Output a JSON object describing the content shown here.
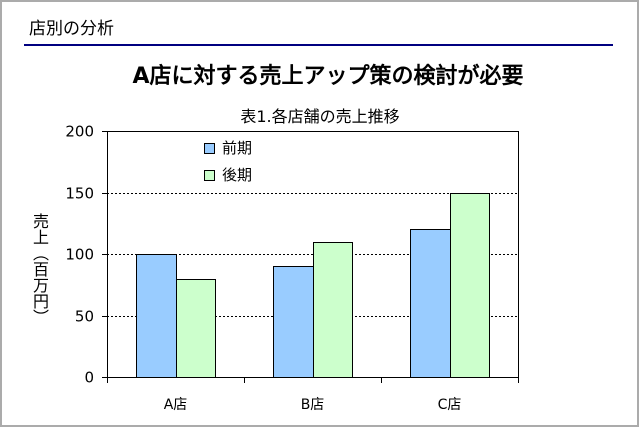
{
  "header": {
    "title": "店別の分析",
    "rule_color": "#000080"
  },
  "slide": {
    "headline": "A店に対する売上アップ策の検討が必要"
  },
  "chart_data": {
    "type": "bar",
    "title": "表1.各店舗の売上推移",
    "ylabel": "売上（百万円）",
    "categories": [
      "A店",
      "B店",
      "C店"
    ],
    "series": [
      {
        "name": "前期",
        "values": [
          100,
          90,
          120
        ],
        "color": "#99CCFF"
      },
      {
        "name": "後期",
        "values": [
          80,
          110,
          150
        ],
        "color": "#CCFFCC"
      }
    ],
    "ylim": [
      0,
      200
    ],
    "yticks": [
      0,
      50,
      100,
      150,
      200
    ],
    "grid": true,
    "legend": "top-left"
  }
}
